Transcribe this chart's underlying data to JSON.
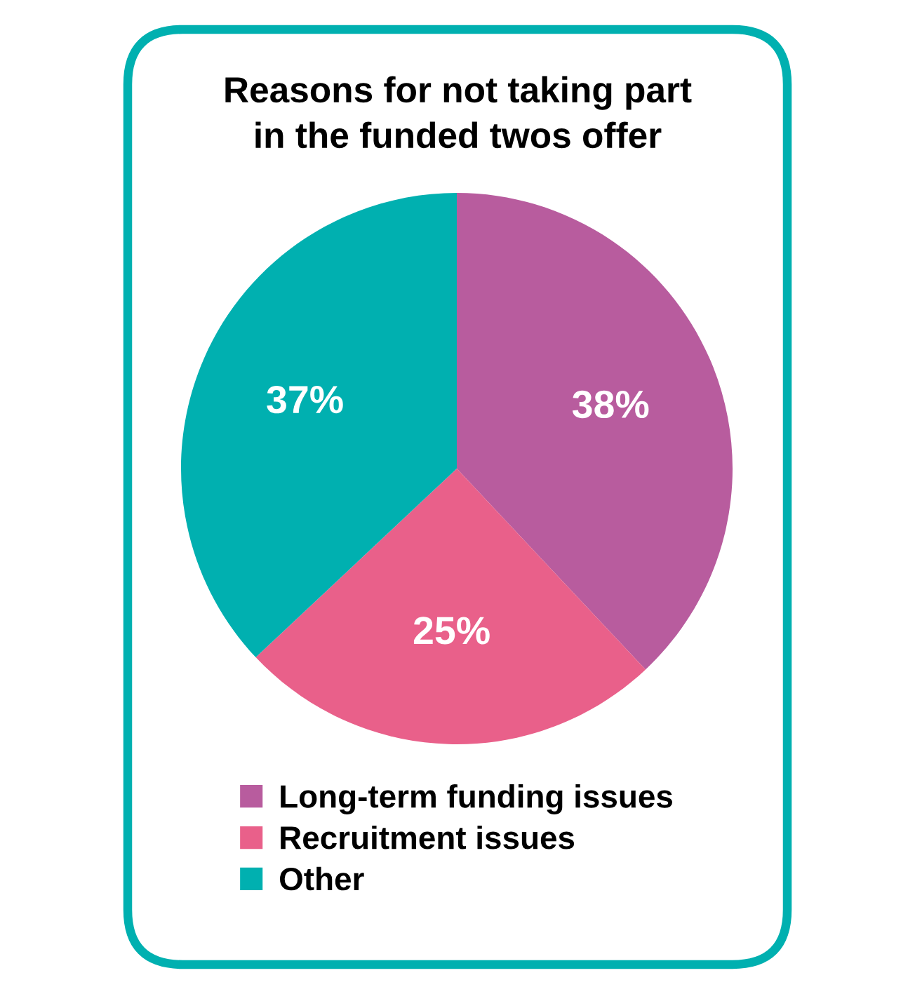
{
  "chart_data": {
    "type": "pie",
    "title": "Reasons for not taking part\nin the funded twos offer",
    "categories": [
      "Long-term funding issues",
      "Recruitment issues",
      "Other"
    ],
    "values": [
      38,
      25,
      37
    ],
    "colors": [
      "#b85c9e",
      "#e9608a",
      "#00b0b0"
    ],
    "value_labels": [
      "38%",
      "25%",
      "37%"
    ],
    "legend": "bottom"
  }
}
